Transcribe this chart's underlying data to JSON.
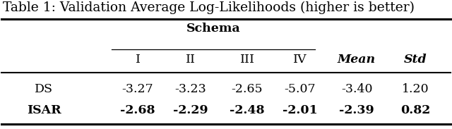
{
  "title": "Table 1: Validation Average Log-Likelihoods (higher is better)",
  "schema_header": "Schema",
  "col_headers_schema": [
    "I",
    "II",
    "III",
    "IV"
  ],
  "col_headers_extra": [
    "Mean",
    "Std"
  ],
  "rows": [
    {
      "label": "DS",
      "bold": false,
      "values": [
        "-3.27",
        "-3.23",
        "-2.65",
        "-5.07",
        "-3.40",
        "1.20"
      ]
    },
    {
      "label": "ISAR",
      "bold": true,
      "values": [
        "-2.68",
        "-2.29",
        "-2.48",
        "-2.01",
        "-2.39",
        "0.82"
      ]
    }
  ],
  "background": "#ffffff",
  "text_color": "#000000",
  "title_fontsize": 13.5,
  "body_fontsize": 12.5,
  "fig_width": 6.4,
  "fig_height": 1.83
}
